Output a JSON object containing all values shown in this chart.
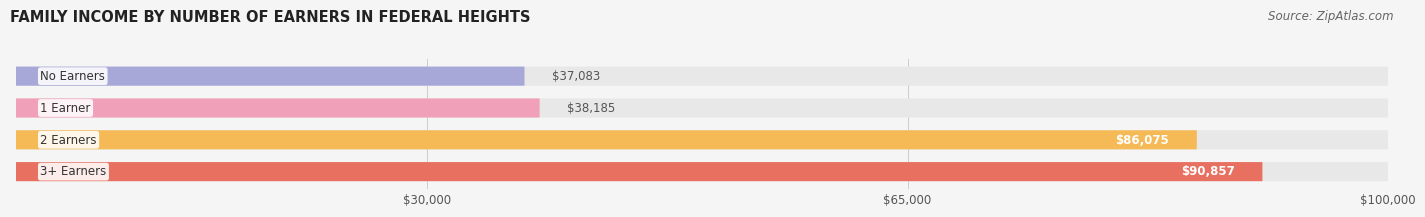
{
  "title": "FAMILY INCOME BY NUMBER OF EARNERS IN FEDERAL HEIGHTS",
  "source": "Source: ZipAtlas.com",
  "categories": [
    "No Earners",
    "1 Earner",
    "2 Earners",
    "3+ Earners"
  ],
  "values": [
    37083,
    38185,
    86075,
    90857
  ],
  "labels": [
    "$37,083",
    "$38,185",
    "$86,075",
    "$90,857"
  ],
  "bar_colors": [
    "#a8a8d8",
    "#f0a0b8",
    "#f5b955",
    "#e87060"
  ],
  "bg_color": "#e8e8e8",
  "label_dark": "#555555",
  "label_light": "#ffffff",
  "xmin": 0,
  "xmax": 100000,
  "xticks": [
    30000,
    65000,
    100000
  ],
  "xtick_labels": [
    "$30,000",
    "$65,000",
    "$100,000"
  ],
  "title_fontsize": 10.5,
  "source_fontsize": 8.5,
  "bar_label_fontsize": 8.5,
  "category_fontsize": 8.5,
  "tick_fontsize": 8.5,
  "background_color": "#f5f5f5"
}
